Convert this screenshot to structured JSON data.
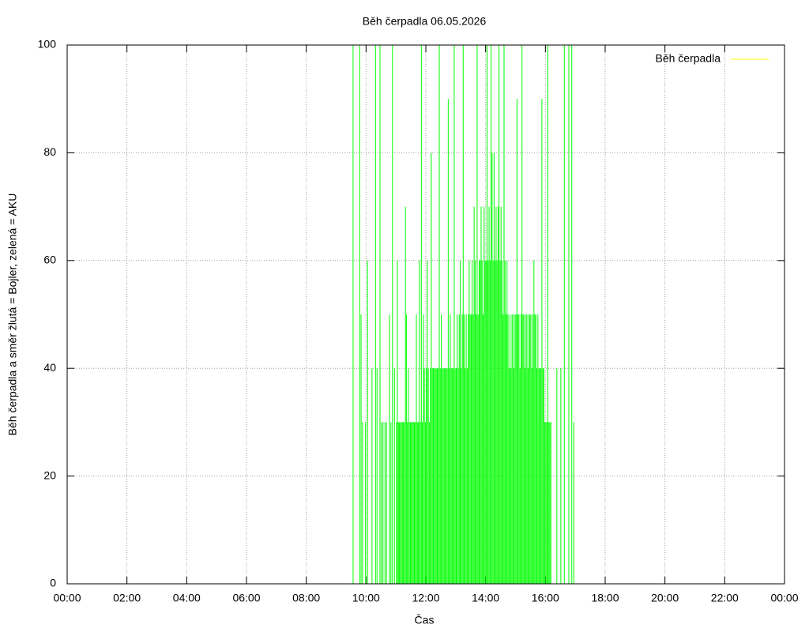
{
  "chart_data": {
    "type": "impulses",
    "title": "Běh čerpadla 06.05.2026",
    "xlabel": "Čas",
    "ylabel": "Běh čerpadla a směr žlutá = Bojler, zelená = AKU",
    "xlim": [
      "00:00",
      "24:00"
    ],
    "xticks": [
      "00:00",
      "02:00",
      "04:00",
      "06:00",
      "08:00",
      "10:00",
      "12:00",
      "14:00",
      "16:00",
      "18:00",
      "20:00",
      "22:00",
      {
        "value": "24:00",
        "label": "00:00"
      }
    ],
    "ylim": [
      0,
      100
    ],
    "yticks": [
      0,
      20,
      40,
      60,
      80,
      100
    ],
    "grid": true,
    "legend": "top-right",
    "x": [
      "09:34",
      "09:47",
      "09:50",
      "09:53",
      "09:59",
      "10:03",
      "10:12",
      "10:19",
      "10:22",
      "10:28",
      "10:31",
      "10:34",
      "10:38",
      "10:41",
      "10:47",
      "10:50",
      "10:53",
      "10:57",
      "11:01",
      "11:03",
      "11:05",
      "11:07",
      "11:09",
      "11:11",
      "11:13",
      "11:15",
      "11:17",
      "11:19",
      "11:21",
      "11:23",
      "11:25",
      "11:27",
      "11:29",
      "11:31",
      "11:33",
      "11:35",
      "11:37",
      "11:39",
      "11:41",
      "11:43",
      "11:45",
      "11:47",
      "11:49",
      "11:51",
      "11:53",
      "11:55",
      "11:57",
      "11:59",
      "12:01",
      "12:03",
      "12:05",
      "12:07",
      "12:09",
      "12:11",
      "12:13",
      "12:15",
      "12:17",
      "12:19",
      "12:21",
      "12:23",
      "12:25",
      "12:27",
      "12:29",
      "12:31",
      "12:33",
      "12:35",
      "12:37",
      "12:39",
      "12:41",
      "12:43",
      "12:45",
      "12:47",
      "12:49",
      "12:51",
      "12:53",
      "12:55",
      "12:57",
      "12:59",
      "13:01",
      "13:03",
      "13:05",
      "13:07",
      "13:09",
      "13:11",
      "13:13",
      "13:15",
      "13:17",
      "13:19",
      "13:21",
      "13:23",
      "13:25",
      "13:27",
      "13:29",
      "13:31",
      "13:33",
      "13:35",
      "13:37",
      "13:39",
      "13:41",
      "13:43",
      "13:45",
      "13:47",
      "13:49",
      "13:51",
      "13:53",
      "13:55",
      "13:57",
      "13:59",
      "14:01",
      "14:03",
      "14:05",
      "14:07",
      "14:09",
      "14:11",
      "14:13",
      "14:15",
      "14:17",
      "14:19",
      "14:21",
      "14:23",
      "14:25",
      "14:27",
      "14:29",
      "14:31",
      "14:33",
      "14:35",
      "14:37",
      "14:39",
      "14:41",
      "14:43",
      "14:45",
      "14:47",
      "14:49",
      "14:51",
      "14:53",
      "14:55",
      "14:57",
      "14:59",
      "15:01",
      "15:03",
      "15:05",
      "15:07",
      "15:09",
      "15:11",
      "15:13",
      "15:15",
      "15:17",
      "15:19",
      "15:21",
      "15:23",
      "15:25",
      "15:27",
      "15:29",
      "15:31",
      "15:33",
      "15:35",
      "15:37",
      "15:39",
      "15:41",
      "15:43",
      "15:45",
      "15:47",
      "15:49",
      "15:51",
      "15:53",
      "15:55",
      "15:57",
      "15:59",
      "16:01",
      "16:03",
      "16:05",
      "16:07",
      "16:09",
      "16:11",
      "16:23",
      "16:31",
      "16:38",
      "16:47",
      "16:53",
      "16:57"
    ],
    "series": [
      {
        "name": "Běh čerpadla",
        "color": "#ffff00",
        "impulse_color": "#00ff00",
        "values": [
          100,
          100,
          50,
          30,
          30,
          60,
          40,
          100,
          40,
          100,
          30,
          30,
          30,
          30,
          50,
          30,
          100,
          40,
          30,
          60,
          30,
          30,
          30,
          30,
          30,
          30,
          30,
          70,
          50,
          30,
          40,
          30,
          30,
          30,
          30,
          30,
          30,
          30,
          50,
          30,
          30,
          60,
          30,
          100,
          30,
          50,
          40,
          30,
          40,
          60,
          40,
          30,
          40,
          80,
          40,
          40,
          40,
          40,
          40,
          40,
          40,
          100,
          40,
          50,
          40,
          40,
          40,
          40,
          40,
          40,
          90,
          40,
          50,
          40,
          40,
          40,
          100,
          40,
          40,
          50,
          40,
          50,
          60,
          40,
          50,
          100,
          50,
          40,
          50,
          40,
          50,
          60,
          50,
          50,
          60,
          50,
          70,
          60,
          50,
          100,
          50,
          60,
          60,
          70,
          60,
          50,
          70,
          60,
          60,
          100,
          60,
          70,
          60,
          100,
          80,
          60,
          80,
          60,
          70,
          60,
          70,
          100,
          60,
          70,
          60,
          50,
          100,
          60,
          50,
          60,
          50,
          40,
          50,
          40,
          50,
          50,
          40,
          50,
          50,
          90,
          50,
          50,
          40,
          50,
          100,
          50,
          50,
          40,
          50,
          50,
          40,
          50,
          50,
          50,
          40,
          50,
          60,
          50,
          50,
          40,
          50,
          40,
          40,
          40,
          90,
          40,
          40,
          30,
          30,
          30,
          100,
          30,
          30,
          30,
          40,
          40,
          100,
          100,
          100,
          30
        ]
      }
    ]
  }
}
